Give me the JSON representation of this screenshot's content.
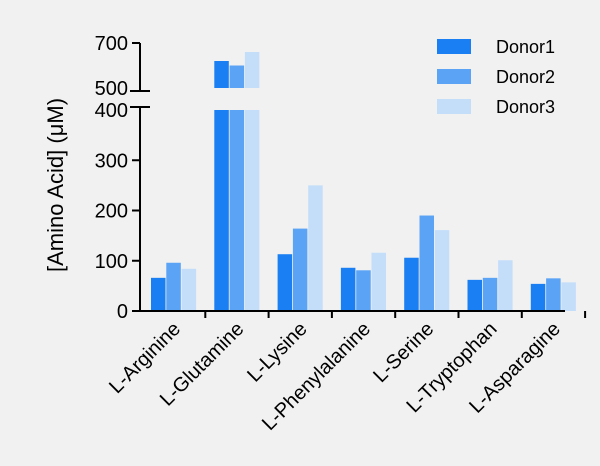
{
  "chart_data": {
    "type": "bar",
    "title": "",
    "xlabel": "",
    "ylabel": "[Amino Acid] (μM)",
    "categories": [
      "L-Arginine",
      "L-Glutamine",
      "L-Lysine",
      "L-Phenylalanine",
      "L-Serine",
      "L-Tryptophan",
      "L-Asparagine"
    ],
    "series": [
      {
        "name": "Donor1",
        "color": "#1a7ff2",
        "values": [
          66,
          620,
          113,
          86,
          106,
          62,
          54
        ]
      },
      {
        "name": "Donor2",
        "color": "#5aa3f5",
        "values": [
          96,
          600,
          164,
          81,
          190,
          66,
          65
        ]
      },
      {
        "name": "Donor3",
        "color": "#c4defa",
        "values": [
          84,
          660,
          250,
          116,
          161,
          101,
          57
        ]
      }
    ],
    "y_axis": {
      "broken": true,
      "lower_segment": {
        "range": [
          0,
          400
        ],
        "ticks": [
          0,
          100,
          200,
          300,
          400
        ]
      },
      "upper_segment": {
        "range": [
          500,
          700
        ],
        "ticks": [
          500,
          700
        ]
      }
    },
    "legend_position": "top-right",
    "grid": false
  }
}
